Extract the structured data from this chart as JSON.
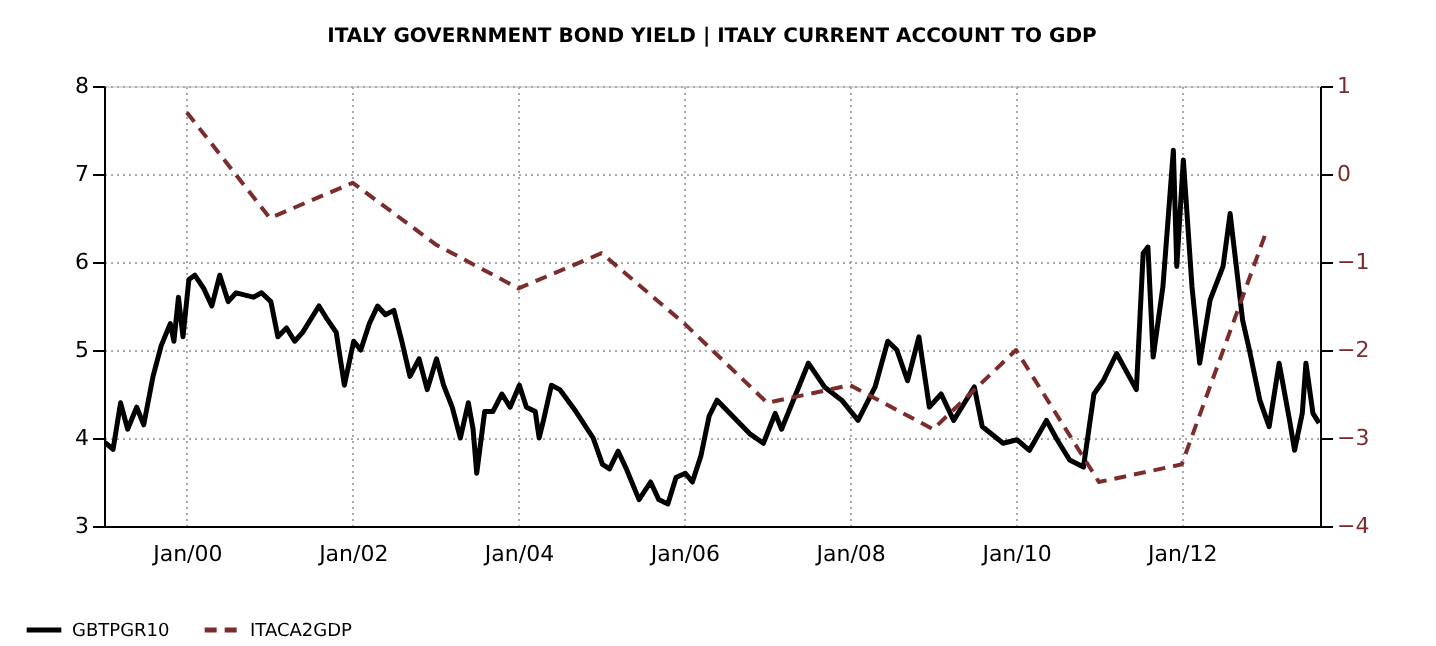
{
  "chart_data": {
    "type": "line",
    "title": "ITALY GOVERNMENT BOND YIELD |  ITALY CURRENT ACCOUNT TO GDP",
    "xlim": [
      "1999-01-01",
      "2013-09-01"
    ],
    "xticks": [
      {
        "value": "2000-01-01",
        "label": "Jan/00"
      },
      {
        "value": "2002-01-01",
        "label": "Jan/02"
      },
      {
        "value": "2004-01-01",
        "label": "Jan/04"
      },
      {
        "value": "2006-01-01",
        "label": "Jan/06"
      },
      {
        "value": "2008-01-01",
        "label": "Jan/08"
      },
      {
        "value": "2010-01-01",
        "label": "Jan/10"
      },
      {
        "value": "2012-01-01",
        "label": "Jan/12"
      }
    ],
    "ylim": [
      3,
      8
    ],
    "yticks": [
      3,
      4,
      5,
      6,
      7,
      8
    ],
    "y2lim": [
      -4,
      1
    ],
    "y2ticks": [
      -4,
      -3,
      -2,
      -1,
      0,
      1
    ],
    "grid": true,
    "legend": "bottom left",
    "marker": "none",
    "series": [
      {
        "name": "GBTPGR10",
        "color": "#000000",
        "line_style": "solid",
        "x": [
          "1999-01-05",
          "1999-02-10",
          "1999-03-15",
          "1999-04-15",
          "1999-05-25",
          "1999-06-25",
          "1999-08-05",
          "1999-09-10",
          "1999-10-20",
          "1999-11-05",
          "1999-11-25",
          "1999-12-15",
          "2000-01-10",
          "2000-02-05",
          "2000-03-15",
          "2000-04-20",
          "2000-05-25",
          "2000-07-01",
          "2000-08-05",
          "2000-10-20",
          "2000-11-25",
          "2001-01-05",
          "2001-02-05",
          "2001-03-15",
          "2001-04-20",
          "2001-05-25",
          "2001-08-05",
          "2001-09-10",
          "2001-10-20",
          "2001-11-25",
          "2002-01-05",
          "2002-02-05",
          "2002-03-15",
          "2002-04-20",
          "2002-05-25",
          "2002-07-01",
          "2002-08-05",
          "2002-09-10",
          "2002-10-20",
          "2002-11-25",
          "2003-01-05",
          "2003-02-05",
          "2003-03-15",
          "2003-04-20",
          "2003-05-25",
          "2003-06-15",
          "2003-07-01",
          "2003-08-05",
          "2003-09-10",
          "2003-10-20",
          "2003-11-25",
          "2004-01-05",
          "2004-02-05",
          "2004-03-15",
          "2004-04-01",
          "2004-04-20",
          "2004-05-25",
          "2004-07-01",
          "2004-09-10",
          "2004-11-25",
          "2005-01-05",
          "2005-02-05",
          "2005-03-15",
          "2005-04-20",
          "2005-06-15",
          "2005-08-05",
          "2005-09-10",
          "2005-10-20",
          "2005-11-25",
          "2006-01-05",
          "2006-02-05",
          "2006-03-15",
          "2006-04-20",
          "2006-05-25",
          "2006-10-15",
          "2006-12-15",
          "2007-02-05",
          "2007-03-05",
          "2007-07-01",
          "2007-09-10",
          "2007-11-25",
          "2008-02-05",
          "2008-04-20",
          "2008-06-15",
          "2008-07-25",
          "2008-09-10",
          "2008-10-30",
          "2008-12-15",
          "2009-02-05",
          "2009-04-01",
          "2009-07-01",
          "2009-08-05",
          "2009-11-05",
          "2010-01-05",
          "2010-03-01",
          "2010-05-15",
          "2010-07-01",
          "2010-08-25",
          "2010-10-25",
          "2010-12-10",
          "2011-01-20",
          "2011-03-20",
          "2011-06-15",
          "2011-07-15",
          "2011-08-05",
          "2011-08-28",
          "2011-10-10",
          "2011-11-25",
          "2011-12-10",
          "2012-01-08",
          "2012-02-15",
          "2012-03-20",
          "2012-05-05",
          "2012-07-01",
          "2012-08-01",
          "2012-09-25",
          "2012-10-25",
          "2012-12-10",
          "2013-01-20",
          "2013-03-05",
          "2013-04-20",
          "2013-05-12",
          "2013-06-15",
          "2013-07-01",
          "2013-08-01",
          "2013-08-28"
        ],
        "values": [
          3.95,
          3.87,
          4.4,
          4.1,
          4.35,
          4.15,
          4.7,
          5.05,
          5.3,
          5.1,
          5.6,
          5.15,
          5.8,
          5.85,
          5.7,
          5.5,
          5.85,
          5.55,
          5.65,
          5.6,
          5.65,
          5.55,
          5.15,
          5.25,
          5.1,
          5.2,
          5.5,
          5.35,
          5.2,
          4.6,
          5.1,
          5.0,
          5.3,
          5.5,
          5.4,
          5.45,
          5.1,
          4.7,
          4.9,
          4.55,
          4.9,
          4.6,
          4.35,
          4.0,
          4.4,
          4.1,
          3.6,
          4.3,
          4.3,
          4.5,
          4.35,
          4.6,
          4.35,
          4.3,
          4.0,
          4.2,
          4.6,
          4.55,
          4.3,
          4.0,
          3.7,
          3.65,
          3.85,
          3.65,
          3.3,
          3.5,
          3.3,
          3.25,
          3.55,
          3.6,
          3.5,
          3.8,
          4.25,
          4.43,
          4.05,
          3.94,
          4.28,
          4.1,
          4.85,
          4.58,
          4.43,
          4.2,
          4.58,
          5.1,
          5.0,
          4.65,
          5.15,
          4.35,
          4.5,
          4.2,
          4.58,
          4.13,
          3.94,
          3.98,
          3.86,
          4.2,
          3.98,
          3.75,
          3.67,
          4.5,
          4.65,
          4.96,
          4.55,
          6.1,
          6.17,
          4.92,
          5.72,
          7.27,
          5.95,
          7.16,
          5.72,
          4.85,
          5.57,
          5.95,
          6.55,
          5.34,
          5.0,
          4.43,
          4.13,
          4.85,
          4.2,
          3.86,
          4.28,
          4.85,
          4.28,
          4.17
        ]
      },
      {
        "name": "ITACA2GDP",
        "color": "#7b2c2c",
        "line_style": "dashed",
        "axis": "y2",
        "x": [
          "2000-01-01",
          "2001-01-01",
          "2002-01-01",
          "2003-01-01",
          "2004-01-01",
          "2005-01-01",
          "2006-01-01",
          "2007-01-01",
          "2008-01-01",
          "2009-01-01",
          "2010-01-01",
          "2011-01-01",
          "2012-01-01",
          "2013-01-01"
        ],
        "values": [
          0.7,
          -0.5,
          -0.1,
          -0.8,
          -1.3,
          -0.9,
          -1.7,
          -2.6,
          -2.4,
          -2.9,
          -2.0,
          -3.5,
          -3.3,
          -0.7
        ]
      }
    ]
  }
}
